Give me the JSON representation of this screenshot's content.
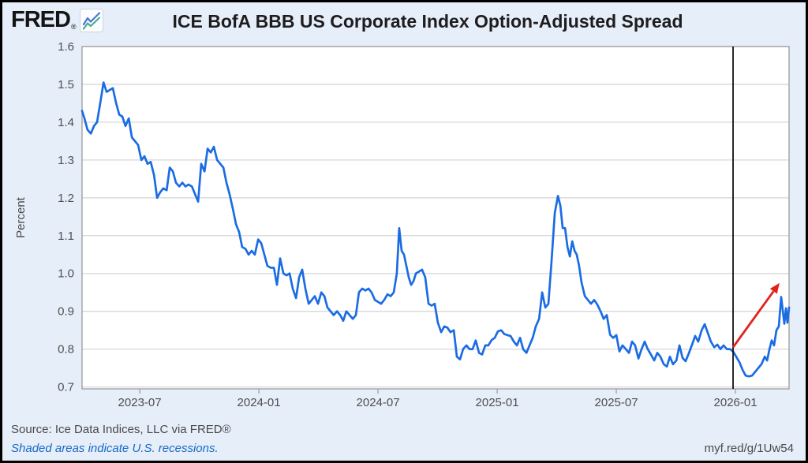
{
  "header": {
    "logo_text": "FRED",
    "logo_registered": "®",
    "title": "ICE BofA BBB US Corporate Index Option-Adjusted Spread"
  },
  "footer": {
    "source": "Source: Ice Data Indices, LLC via FRED®",
    "recession_note": "Shaded areas indicate U.S. recessions.",
    "short_url": "myf.red/g/1Uw54"
  },
  "colors": {
    "background": "#e6eef9",
    "plot_background": "#ffffff",
    "gridline": "#d7d7d7",
    "plot_border": "#9b9b9b",
    "line": "#1b6ce3",
    "vertical_marker": "#111111",
    "arrow": "#e0231e",
    "tick_text": "#4f4f4f",
    "note_link": "#1668c7",
    "logo_icon_blue": "#4a76d0",
    "logo_icon_green": "#49ab94"
  },
  "chart_data": {
    "type": "line",
    "title": "ICE BofA BBB US Corporate Index Option-Adjusted Spread",
    "ylabel": "Percent",
    "grid": "horizontal",
    "legend": "none",
    "x_axis": {
      "unit": "date (decimal year)",
      "range": [
        2023.258,
        2026.225
      ],
      "tick_positions": [
        2023.5,
        2024.0,
        2024.5,
        2025.0,
        2025.5,
        2026.0
      ],
      "tick_labels": [
        "2023-07",
        "2024-01",
        "2024-07",
        "2025-01",
        "2025-07",
        "2026-01"
      ]
    },
    "y_axis": {
      "unit": "Percent",
      "range": [
        0.695,
        1.6
      ],
      "ticks": [
        0.7,
        0.8,
        0.9,
        1.0,
        1.1,
        1.2,
        1.3,
        1.4,
        1.5,
        1.6
      ]
    },
    "annotations": {
      "vertical_line": {
        "x": 2025.99,
        "label": "2026-01 marker"
      },
      "arrow": {
        "from": [
          2025.99,
          0.805
        ],
        "to": [
          2026.185,
          0.975
        ]
      }
    },
    "series": [
      {
        "name": "ICE BofA BBB US Corporate Index Option-Adjusted Spread",
        "points": [
          [
            2023.258,
            1.43
          ],
          [
            2023.268,
            1.41
          ],
          [
            2023.281,
            1.38
          ],
          [
            2023.295,
            1.37
          ],
          [
            2023.308,
            1.39
          ],
          [
            2023.321,
            1.4
          ],
          [
            2023.334,
            1.45
          ],
          [
            2023.348,
            1.505
          ],
          [
            2023.361,
            1.48
          ],
          [
            2023.374,
            1.485
          ],
          [
            2023.387,
            1.49
          ],
          [
            2023.401,
            1.45
          ],
          [
            2023.414,
            1.42
          ],
          [
            2023.427,
            1.415
          ],
          [
            2023.44,
            1.39
          ],
          [
            2023.454,
            1.41
          ],
          [
            2023.467,
            1.36
          ],
          [
            2023.48,
            1.35
          ],
          [
            2023.493,
            1.34
          ],
          [
            2023.507,
            1.3
          ],
          [
            2023.52,
            1.31
          ],
          [
            2023.533,
            1.29
          ],
          [
            2023.546,
            1.295
          ],
          [
            2023.56,
            1.26
          ],
          [
            2023.573,
            1.2
          ],
          [
            2023.586,
            1.215
          ],
          [
            2023.599,
            1.225
          ],
          [
            2023.613,
            1.22
          ],
          [
            2023.626,
            1.28
          ],
          [
            2023.639,
            1.27
          ],
          [
            2023.652,
            1.24
          ],
          [
            2023.666,
            1.23
          ],
          [
            2023.679,
            1.24
          ],
          [
            2023.692,
            1.23
          ],
          [
            2023.705,
            1.235
          ],
          [
            2023.719,
            1.23
          ],
          [
            2023.732,
            1.21
          ],
          [
            2023.745,
            1.19
          ],
          [
            2023.758,
            1.29
          ],
          [
            2023.772,
            1.27
          ],
          [
            2023.785,
            1.33
          ],
          [
            2023.798,
            1.32
          ],
          [
            2023.811,
            1.335
          ],
          [
            2023.825,
            1.3
          ],
          [
            2023.838,
            1.29
          ],
          [
            2023.851,
            1.28
          ],
          [
            2023.864,
            1.24
          ],
          [
            2023.877,
            1.21
          ],
          [
            2023.891,
            1.17
          ],
          [
            2023.904,
            1.13
          ],
          [
            2023.917,
            1.11
          ],
          [
            2023.93,
            1.07
          ],
          [
            2023.944,
            1.065
          ],
          [
            2023.957,
            1.05
          ],
          [
            2023.97,
            1.06
          ],
          [
            2023.983,
            1.05
          ],
          [
            2023.997,
            1.09
          ],
          [
            2024.01,
            1.08
          ],
          [
            2024.023,
            1.05
          ],
          [
            2024.036,
            1.02
          ],
          [
            2024.05,
            1.015
          ],
          [
            2024.063,
            1.015
          ],
          [
            2024.076,
            0.97
          ],
          [
            2024.089,
            1.04
          ],
          [
            2024.103,
            1.0
          ],
          [
            2024.116,
            0.995
          ],
          [
            2024.129,
            1.0
          ],
          [
            2024.142,
            0.96
          ],
          [
            2024.156,
            0.935
          ],
          [
            2024.169,
            0.99
          ],
          [
            2024.182,
            1.01
          ],
          [
            2024.195,
            0.96
          ],
          [
            2024.209,
            0.92
          ],
          [
            2024.222,
            0.93
          ],
          [
            2024.235,
            0.94
          ],
          [
            2024.248,
            0.92
          ],
          [
            2024.262,
            0.95
          ],
          [
            2024.275,
            0.94
          ],
          [
            2024.288,
            0.91
          ],
          [
            2024.301,
            0.9
          ],
          [
            2024.314,
            0.89
          ],
          [
            2024.328,
            0.9
          ],
          [
            2024.341,
            0.89
          ],
          [
            2024.354,
            0.875
          ],
          [
            2024.367,
            0.9
          ],
          [
            2024.381,
            0.89
          ],
          [
            2024.394,
            0.88
          ],
          [
            2024.407,
            0.89
          ],
          [
            2024.42,
            0.95
          ],
          [
            2024.434,
            0.96
          ],
          [
            2024.447,
            0.955
          ],
          [
            2024.46,
            0.96
          ],
          [
            2024.473,
            0.95
          ],
          [
            2024.487,
            0.93
          ],
          [
            2024.5,
            0.925
          ],
          [
            2024.513,
            0.92
          ],
          [
            2024.526,
            0.93
          ],
          [
            2024.54,
            0.945
          ],
          [
            2024.553,
            0.94
          ],
          [
            2024.566,
            0.95
          ],
          [
            2024.579,
            1.0
          ],
          [
            2024.589,
            1.12
          ],
          [
            2024.599,
            1.06
          ],
          [
            2024.609,
            1.05
          ],
          [
            2024.619,
            1.02
          ],
          [
            2024.629,
            0.99
          ],
          [
            2024.639,
            0.97
          ],
          [
            2024.649,
            0.98
          ],
          [
            2024.659,
            1.0
          ],
          [
            2024.672,
            1.005
          ],
          [
            2024.685,
            1.01
          ],
          [
            2024.698,
            0.99
          ],
          [
            2024.712,
            0.92
          ],
          [
            2024.725,
            0.915
          ],
          [
            2024.738,
            0.92
          ],
          [
            2024.751,
            0.87
          ],
          [
            2024.765,
            0.845
          ],
          [
            2024.778,
            0.86
          ],
          [
            2024.791,
            0.857
          ],
          [
            2024.804,
            0.845
          ],
          [
            2024.818,
            0.85
          ],
          [
            2024.831,
            0.78
          ],
          [
            2024.844,
            0.773
          ],
          [
            2024.857,
            0.8
          ],
          [
            2024.871,
            0.81
          ],
          [
            2024.884,
            0.8
          ],
          [
            2024.897,
            0.8
          ],
          [
            2024.91,
            0.823
          ],
          [
            2024.924,
            0.79
          ],
          [
            2024.937,
            0.786
          ],
          [
            2024.95,
            0.81
          ],
          [
            2024.963,
            0.81
          ],
          [
            2024.977,
            0.824
          ],
          [
            2024.99,
            0.83
          ],
          [
            2025.003,
            0.847
          ],
          [
            2025.017,
            0.85
          ],
          [
            2025.03,
            0.84
          ],
          [
            2025.043,
            0.837
          ],
          [
            2025.056,
            0.835
          ],
          [
            2025.07,
            0.82
          ],
          [
            2025.083,
            0.81
          ],
          [
            2025.096,
            0.83
          ],
          [
            2025.109,
            0.8
          ],
          [
            2025.123,
            0.79
          ],
          [
            2025.136,
            0.81
          ],
          [
            2025.149,
            0.83
          ],
          [
            2025.162,
            0.86
          ],
          [
            2025.176,
            0.88
          ],
          [
            2025.189,
            0.95
          ],
          [
            2025.202,
            0.91
          ],
          [
            2025.215,
            0.92
          ],
          [
            2025.228,
            1.03
          ],
          [
            2025.242,
            1.16
          ],
          [
            2025.255,
            1.205
          ],
          [
            2025.265,
            1.18
          ],
          [
            2025.275,
            1.12
          ],
          [
            2025.285,
            1.12
          ],
          [
            2025.295,
            1.07
          ],
          [
            2025.305,
            1.045
          ],
          [
            2025.315,
            1.085
          ],
          [
            2025.325,
            1.06
          ],
          [
            2025.334,
            1.05
          ],
          [
            2025.344,
            1.02
          ],
          [
            2025.354,
            0.976
          ],
          [
            2025.368,
            0.94
          ],
          [
            2025.381,
            0.93
          ],
          [
            2025.394,
            0.92
          ],
          [
            2025.407,
            0.93
          ],
          [
            2025.421,
            0.917
          ],
          [
            2025.434,
            0.9
          ],
          [
            2025.447,
            0.88
          ],
          [
            2025.46,
            0.89
          ],
          [
            2025.474,
            0.838
          ],
          [
            2025.487,
            0.83
          ],
          [
            2025.5,
            0.837
          ],
          [
            2025.513,
            0.794
          ],
          [
            2025.526,
            0.81
          ],
          [
            2025.54,
            0.8
          ],
          [
            2025.553,
            0.79
          ],
          [
            2025.566,
            0.82
          ],
          [
            2025.579,
            0.81
          ],
          [
            2025.593,
            0.775
          ],
          [
            2025.606,
            0.8
          ],
          [
            2025.619,
            0.82
          ],
          [
            2025.632,
            0.8
          ],
          [
            2025.646,
            0.785
          ],
          [
            2025.659,
            0.77
          ],
          [
            2025.672,
            0.79
          ],
          [
            2025.685,
            0.78
          ],
          [
            2025.699,
            0.76
          ],
          [
            2025.712,
            0.754
          ],
          [
            2025.725,
            0.78
          ],
          [
            2025.738,
            0.76
          ],
          [
            2025.752,
            0.77
          ],
          [
            2025.765,
            0.81
          ],
          [
            2025.778,
            0.777
          ],
          [
            2025.791,
            0.768
          ],
          [
            2025.805,
            0.79
          ],
          [
            2025.818,
            0.812
          ],
          [
            2025.831,
            0.835
          ],
          [
            2025.844,
            0.82
          ],
          [
            2025.858,
            0.85
          ],
          [
            2025.871,
            0.866
          ],
          [
            2025.884,
            0.843
          ],
          [
            2025.897,
            0.82
          ],
          [
            2025.911,
            0.805
          ],
          [
            2025.924,
            0.812
          ],
          [
            2025.937,
            0.8
          ],
          [
            2025.95,
            0.81
          ],
          [
            2025.964,
            0.8
          ],
          [
            2025.977,
            0.8
          ],
          [
            2025.99,
            0.794
          ],
          [
            2026.003,
            0.78
          ],
          [
            2026.017,
            0.765
          ],
          [
            2026.03,
            0.745
          ],
          [
            2026.043,
            0.73
          ],
          [
            2026.056,
            0.728
          ],
          [
            2026.07,
            0.73
          ],
          [
            2026.083,
            0.74
          ],
          [
            2026.096,
            0.75
          ],
          [
            2026.109,
            0.76
          ],
          [
            2026.123,
            0.78
          ],
          [
            2026.133,
            0.77
          ],
          [
            2026.143,
            0.8
          ],
          [
            2026.152,
            0.823
          ],
          [
            2026.162,
            0.81
          ],
          [
            2026.172,
            0.85
          ],
          [
            2026.182,
            0.86
          ],
          [
            2026.192,
            0.938
          ],
          [
            2026.198,
            0.906
          ],
          [
            2026.205,
            0.867
          ],
          [
            2026.212,
            0.908
          ],
          [
            2026.218,
            0.87
          ],
          [
            2026.225,
            0.91
          ]
        ]
      }
    ]
  }
}
